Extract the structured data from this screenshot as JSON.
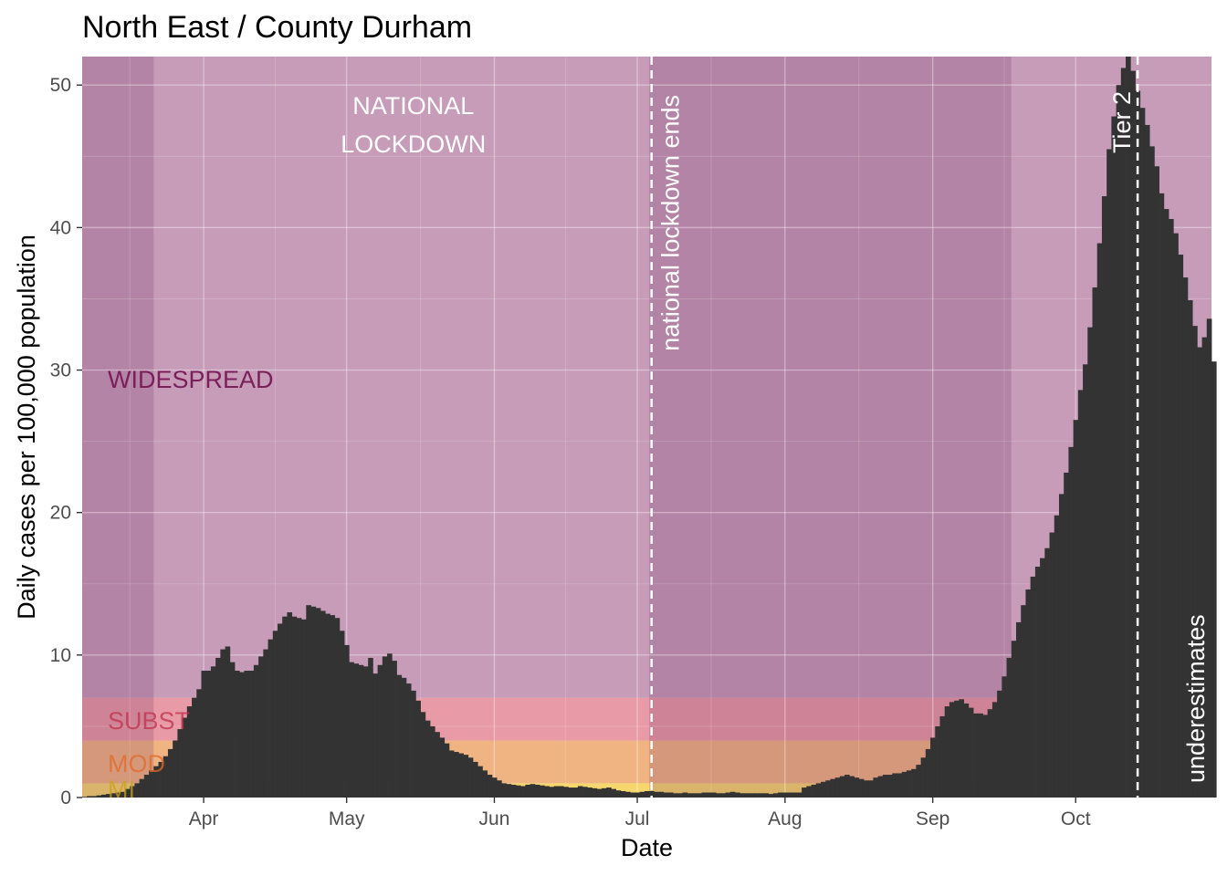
{
  "chart_data": {
    "type": "bar",
    "title": "North East / County Durham",
    "xlabel": "Date",
    "ylabel": "Daily cases per 100,000 population",
    "x_start": "2020-03-07",
    "x_end": "2020-10-29",
    "ylim": [
      0,
      52
    ],
    "yticks": [
      0,
      10,
      20,
      30,
      40,
      50
    ],
    "xticks": [
      {
        "date": "2020-04-01",
        "label": "Apr"
      },
      {
        "date": "2020-05-01",
        "label": "May"
      },
      {
        "date": "2020-06-01",
        "label": "Jun"
      },
      {
        "date": "2020-07-01",
        "label": "Jul"
      },
      {
        "date": "2020-08-01",
        "label": "Aug"
      },
      {
        "date": "2020-09-01",
        "label": "Sep"
      },
      {
        "date": "2020-10-01",
        "label": "Oct"
      }
    ],
    "bar_color": "#333333",
    "grid": true,
    "panel_background": "#ebebeb",
    "risk_bands": [
      {
        "label": "MI",
        "ymin": 0,
        "ymax": 1,
        "color": "#f5d76e"
      },
      {
        "label": "MOD",
        "ymin": 1,
        "ymax": 4,
        "color": "#f0b482"
      },
      {
        "label": "SUBST",
        "ymin": 4,
        "ymax": 7,
        "color": "#e89aa6"
      },
      {
        "label": "WIDESPREAD",
        "ymin": 7,
        "ymax": 52,
        "color": "#c79cb9"
      }
    ],
    "shaded_periods": [
      {
        "start": "2020-03-07",
        "end": "2020-03-22"
      },
      {
        "start": "2020-07-04",
        "end": "2020-09-18"
      }
    ],
    "annotations": [
      {
        "text_lines": [
          "NATIONAL",
          "LOCKDOWN"
        ],
        "date": "2020-05-15",
        "y": 48
      },
      {
        "vline": "2020-07-04",
        "text": "national lockdown ends"
      },
      {
        "vline": "2020-10-14",
        "text": "Tier 2"
      },
      {
        "text": "underestimates",
        "color": "#f07d1e"
      }
    ],
    "values": [
      0.05,
      0.1,
      0.1,
      0.15,
      0.2,
      0.25,
      0.3,
      0.35,
      0.4,
      0.6,
      0.8,
      1.0,
      1.3,
      1.6,
      1.9,
      2.2,
      2.5,
      2.9,
      3.4,
      4.0,
      4.8,
      5.6,
      6.4,
      7.0,
      7.6,
      8.9,
      8.9,
      9.2,
      9.8,
      10.4,
      10.6,
      9.5,
      8.9,
      8.8,
      8.9,
      8.9,
      9.3,
      9.9,
      10.4,
      11.1,
      11.7,
      12.2,
      12.7,
      13.0,
      12.7,
      12.6,
      12.5,
      13.5,
      13.4,
      13.3,
      13.1,
      12.9,
      12.8,
      12.6,
      11.7,
      10.7,
      9.5,
      9.4,
      9.3,
      9.2,
      9.8,
      8.7,
      9.3,
      9.9,
      10.1,
      9.6,
      8.6,
      8.4,
      8.0,
      7.5,
      6.8,
      6.0,
      5.4,
      5.0,
      4.6,
      4.2,
      3.8,
      3.3,
      3.2,
      3.1,
      3.0,
      2.8,
      2.5,
      2.2,
      1.9,
      1.6,
      1.4,
      1.2,
      1.0,
      0.95,
      0.9,
      0.85,
      0.8,
      0.9,
      0.95,
      0.9,
      0.85,
      0.8,
      0.75,
      0.8,
      0.8,
      0.75,
      0.7,
      0.7,
      0.8,
      0.75,
      0.7,
      0.65,
      0.6,
      0.65,
      0.7,
      0.6,
      0.5,
      0.45,
      0.4,
      0.35,
      0.35,
      0.4,
      0.45,
      0.45,
      0.4,
      0.4,
      0.35,
      0.35,
      0.3,
      0.3,
      0.35,
      0.3,
      0.3,
      0.3,
      0.35,
      0.35,
      0.35,
      0.3,
      0.3,
      0.35,
      0.4,
      0.35,
      0.3,
      0.3,
      0.3,
      0.3,
      0.3,
      0.3,
      0.25,
      0.3,
      0.35,
      0.35,
      0.35,
      0.35,
      0.35,
      0.7,
      0.8,
      0.9,
      1.0,
      1.1,
      1.2,
      1.3,
      1.4,
      1.5,
      1.6,
      1.5,
      1.4,
      1.3,
      1.2,
      1.2,
      1.4,
      1.5,
      1.6,
      1.6,
      1.7,
      1.7,
      1.8,
      1.9,
      2.0,
      2.3,
      2.8,
      3.4,
      4.2,
      5.0,
      5.7,
      6.4,
      6.7,
      6.8,
      6.9,
      6.6,
      6.3,
      5.9,
      5.9,
      5.8,
      6.2,
      6.7,
      7.5,
      8.5,
      9.8,
      11.0,
      12.3,
      13.5,
      14.6,
      15.5,
      16.2,
      16.8,
      17.5,
      18.6,
      19.8,
      21.3,
      22.8,
      24.6,
      26.5,
      28.6,
      30.4,
      33.0,
      35.8,
      38.9,
      42.2,
      45.5,
      47.8,
      50.0,
      51.2,
      52.0,
      51.0,
      49.6,
      48.4,
      47.2,
      45.7,
      44.3,
      42.4,
      41.3,
      40.6,
      39.6,
      38.1,
      36.5,
      34.9,
      33.1,
      31.6,
      32.3,
      33.6,
      30.6
    ]
  }
}
